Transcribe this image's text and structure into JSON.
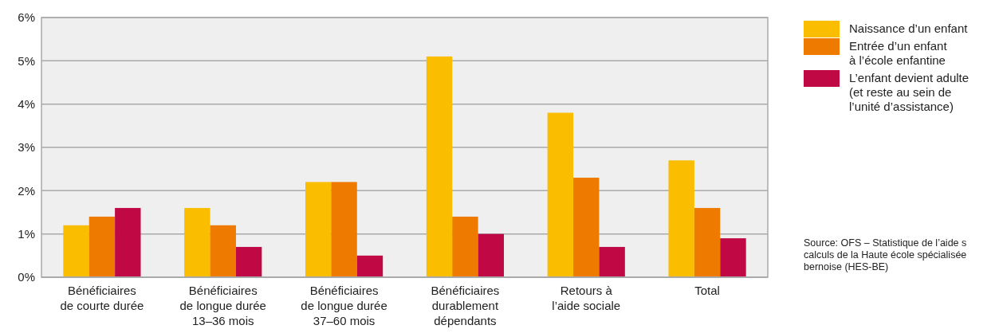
{
  "chart_data": {
    "type": "bar",
    "categories": [
      "Bénéficiaires\nde courte durée",
      "Bénéficiaires\nde longue durée\n13–36 mois",
      "Bénéficiaires\nde longue durée\n37–60 mois",
      "Bénéficiaires\ndurablement\ndépendants",
      "Retours à\nl’aide sociale",
      "Total"
    ],
    "series": [
      {
        "name": "Naissance d’un enfant",
        "color": "#fabd00",
        "values": [
          1.2,
          1.6,
          2.2,
          5.1,
          3.8,
          2.7
        ]
      },
      {
        "name": "Entrée d’un enfant\nà l’école enfantine",
        "color": "#ee7a00",
        "values": [
          1.4,
          1.2,
          2.2,
          1.4,
          2.3,
          1.6
        ]
      },
      {
        "name": "L’enfant devient adulte\n(et reste au sein de\nl’unité d’assistance)",
        "color": "#c00845",
        "values": [
          1.6,
          0.7,
          0.5,
          1.0,
          0.7,
          0.9
        ]
      }
    ],
    "ylim": [
      0,
      6
    ],
    "yticks": [
      {
        "value": 0,
        "label": "0%"
      },
      {
        "value": 1,
        "label": "1%"
      },
      {
        "value": 2,
        "label": "2%"
      },
      {
        "value": 3,
        "label": "3%"
      },
      {
        "value": 4,
        "label": "4%"
      },
      {
        "value": 5,
        "label": "5%"
      },
      {
        "value": 6,
        "label": "6%"
      }
    ],
    "grid": "y",
    "legend": "right",
    "annotations": [
      "Source: OFS – Statistique de l’aide s\ncalculs de la Haute école spécialisée\nbernoise (HES-BE)"
    ]
  }
}
